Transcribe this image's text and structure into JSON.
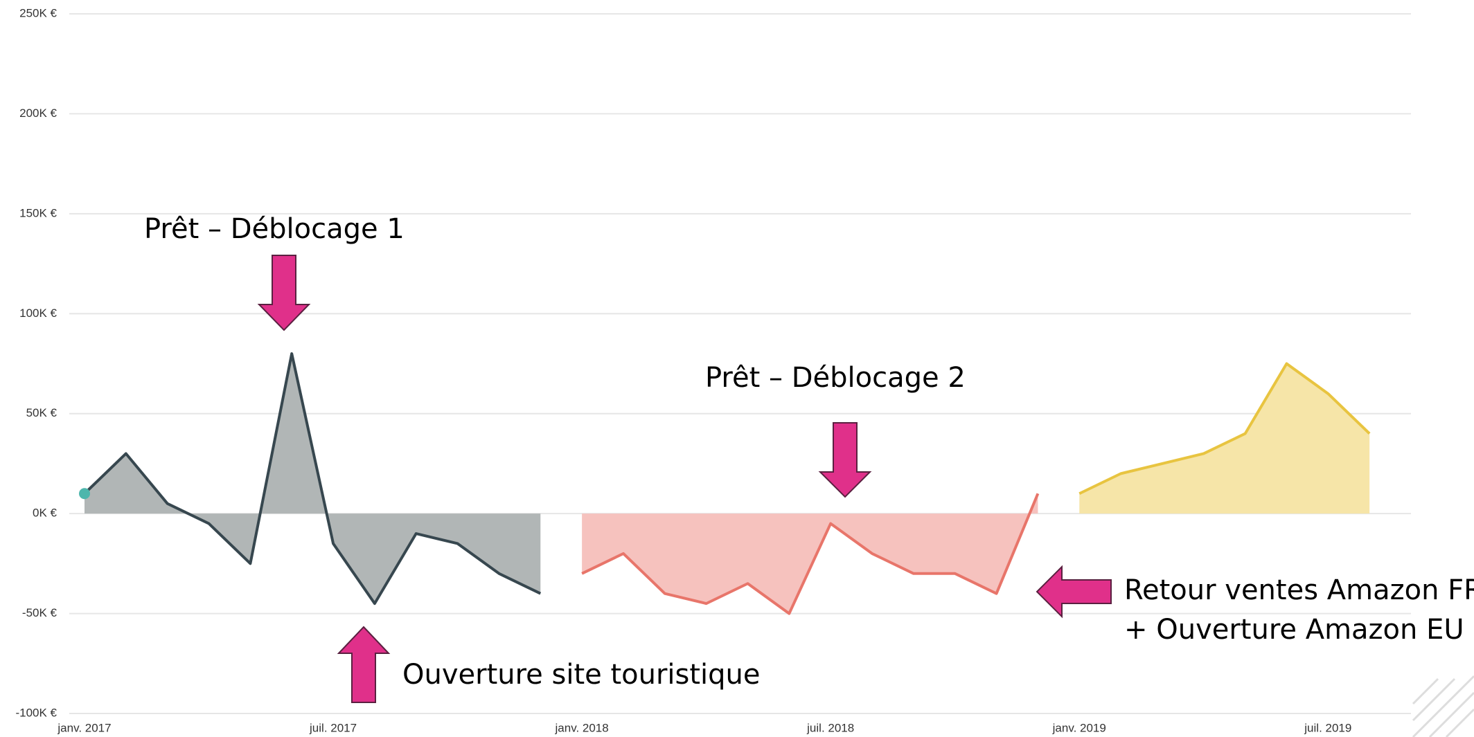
{
  "chart_data": {
    "type": "area",
    "x": [
      "2017-01",
      "2017-02",
      "2017-03",
      "2017-04",
      "2017-05",
      "2017-06",
      "2017-07",
      "2017-08",
      "2017-09",
      "2017-10",
      "2017-11",
      "2017-12",
      "2018-01",
      "2018-02",
      "2018-03",
      "2018-04",
      "2018-05",
      "2018-06",
      "2018-07",
      "2018-08",
      "2018-09",
      "2018-10",
      "2018-11",
      "2018-12",
      "2019-01",
      "2019-02",
      "2019-03",
      "2019-04",
      "2019-05",
      "2019-06",
      "2019-07",
      "2019-08"
    ],
    "series": [
      {
        "color": "#37474f",
        "fill_color": "#b1b6b6",
        "values": [
          10000,
          30000,
          5000,
          -5000,
          -25000,
          80000,
          -15000,
          -45000,
          -10000,
          -15000,
          -30000,
          -40000,
          null,
          null,
          null,
          null,
          null,
          null,
          null,
          null,
          null,
          null,
          null,
          null,
          null,
          null,
          null,
          null,
          null,
          null,
          null,
          null
        ]
      },
      {
        "color": "#e8756a",
        "fill_color": "#f6c2be",
        "values": [
          null,
          null,
          null,
          null,
          null,
          null,
          null,
          null,
          null,
          null,
          null,
          null,
          -30000,
          -20000,
          -40000,
          -45000,
          -35000,
          -50000,
          -5000,
          -20000,
          -30000,
          -30000,
          -40000,
          10000,
          null,
          null,
          null,
          null,
          null,
          null,
          null,
          null
        ]
      },
      {
        "color": "#e8c440",
        "fill_color": "#f6e5a8",
        "values": [
          null,
          null,
          null,
          null,
          null,
          null,
          null,
          null,
          null,
          null,
          null,
          null,
          null,
          null,
          null,
          null,
          null,
          null,
          null,
          null,
          null,
          null,
          null,
          null,
          10000,
          20000,
          25000,
          30000,
          40000,
          75000,
          60000,
          40000
        ]
      }
    ],
    "start_marker_color": "#4db6ac",
    "xlim": [
      "2017-01",
      "2019-09"
    ],
    "xticks": [
      {
        "value": "2017-01",
        "label": "janv. 2017"
      },
      {
        "value": "2017-07",
        "label": "juil. 2017"
      },
      {
        "value": "2018-01",
        "label": "janv. 2018"
      },
      {
        "value": "2018-07",
        "label": "juil. 2018"
      },
      {
        "value": "2019-01",
        "label": "janv. 2019"
      },
      {
        "value": "2019-07",
        "label": "juil. 2019"
      }
    ],
    "ylim": [
      -100000,
      250000
    ],
    "yticks": [
      {
        "value": -100000,
        "label": "-100K €"
      },
      {
        "value": -50000,
        "label": "-50K €"
      },
      {
        "value": 0,
        "label": "0K €"
      },
      {
        "value": 50000,
        "label": "50K €"
      },
      {
        "value": 100000,
        "label": "100K €"
      },
      {
        "value": 150000,
        "label": "150K €"
      },
      {
        "value": 200000,
        "label": "200K €"
      },
      {
        "value": 250000,
        "label": "250K €"
      }
    ],
    "grid": true,
    "annotations": [
      "Prêt – Déblocage 1",
      "Prêt – Déblocage 2",
      "Ouverture site touristique",
      "Retour ventes Amazon FR",
      "+ Ouverture Amazon EU"
    ]
  }
}
